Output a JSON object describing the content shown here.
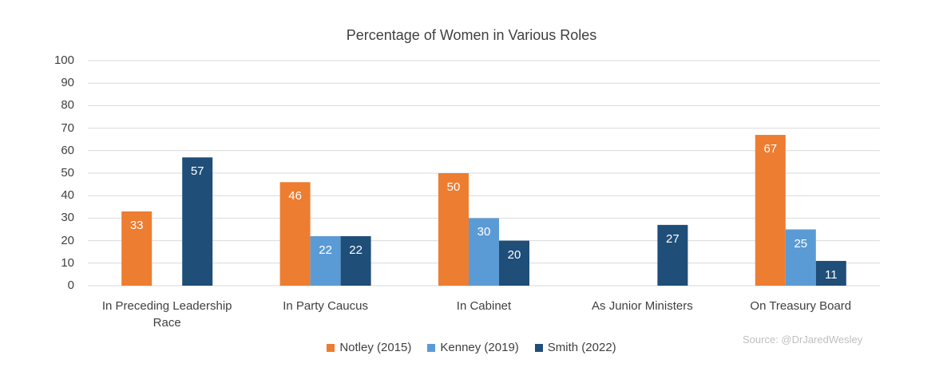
{
  "chart_data": {
    "type": "bar",
    "title": "Percentage of Women in Various Roles",
    "categories": [
      "In Preceding Leadership Race",
      "In Party Caucus",
      "In Cabinet",
      "As Junior Ministers",
      "On Treasury Board"
    ],
    "series": [
      {
        "name": "Notley (2015)",
        "color": "#ED7D31",
        "values": [
          33,
          46,
          50,
          null,
          67
        ]
      },
      {
        "name": "Kenney (2019)",
        "color": "#5B9BD5",
        "values": [
          null,
          22,
          30,
          null,
          25
        ]
      },
      {
        "name": "Smith (2022)",
        "color": "#1F4E79",
        "values": [
          57,
          22,
          20,
          27,
          11
        ]
      }
    ],
    "yticks": [
      "0",
      "10",
      "20",
      "30",
      "40",
      "50",
      "60",
      "70",
      "80",
      "90",
      "100"
    ],
    "ylim": [
      0,
      100
    ],
    "grid": true,
    "legend_position": "bottom",
    "source": "Source: @DrJaredWesley"
  }
}
